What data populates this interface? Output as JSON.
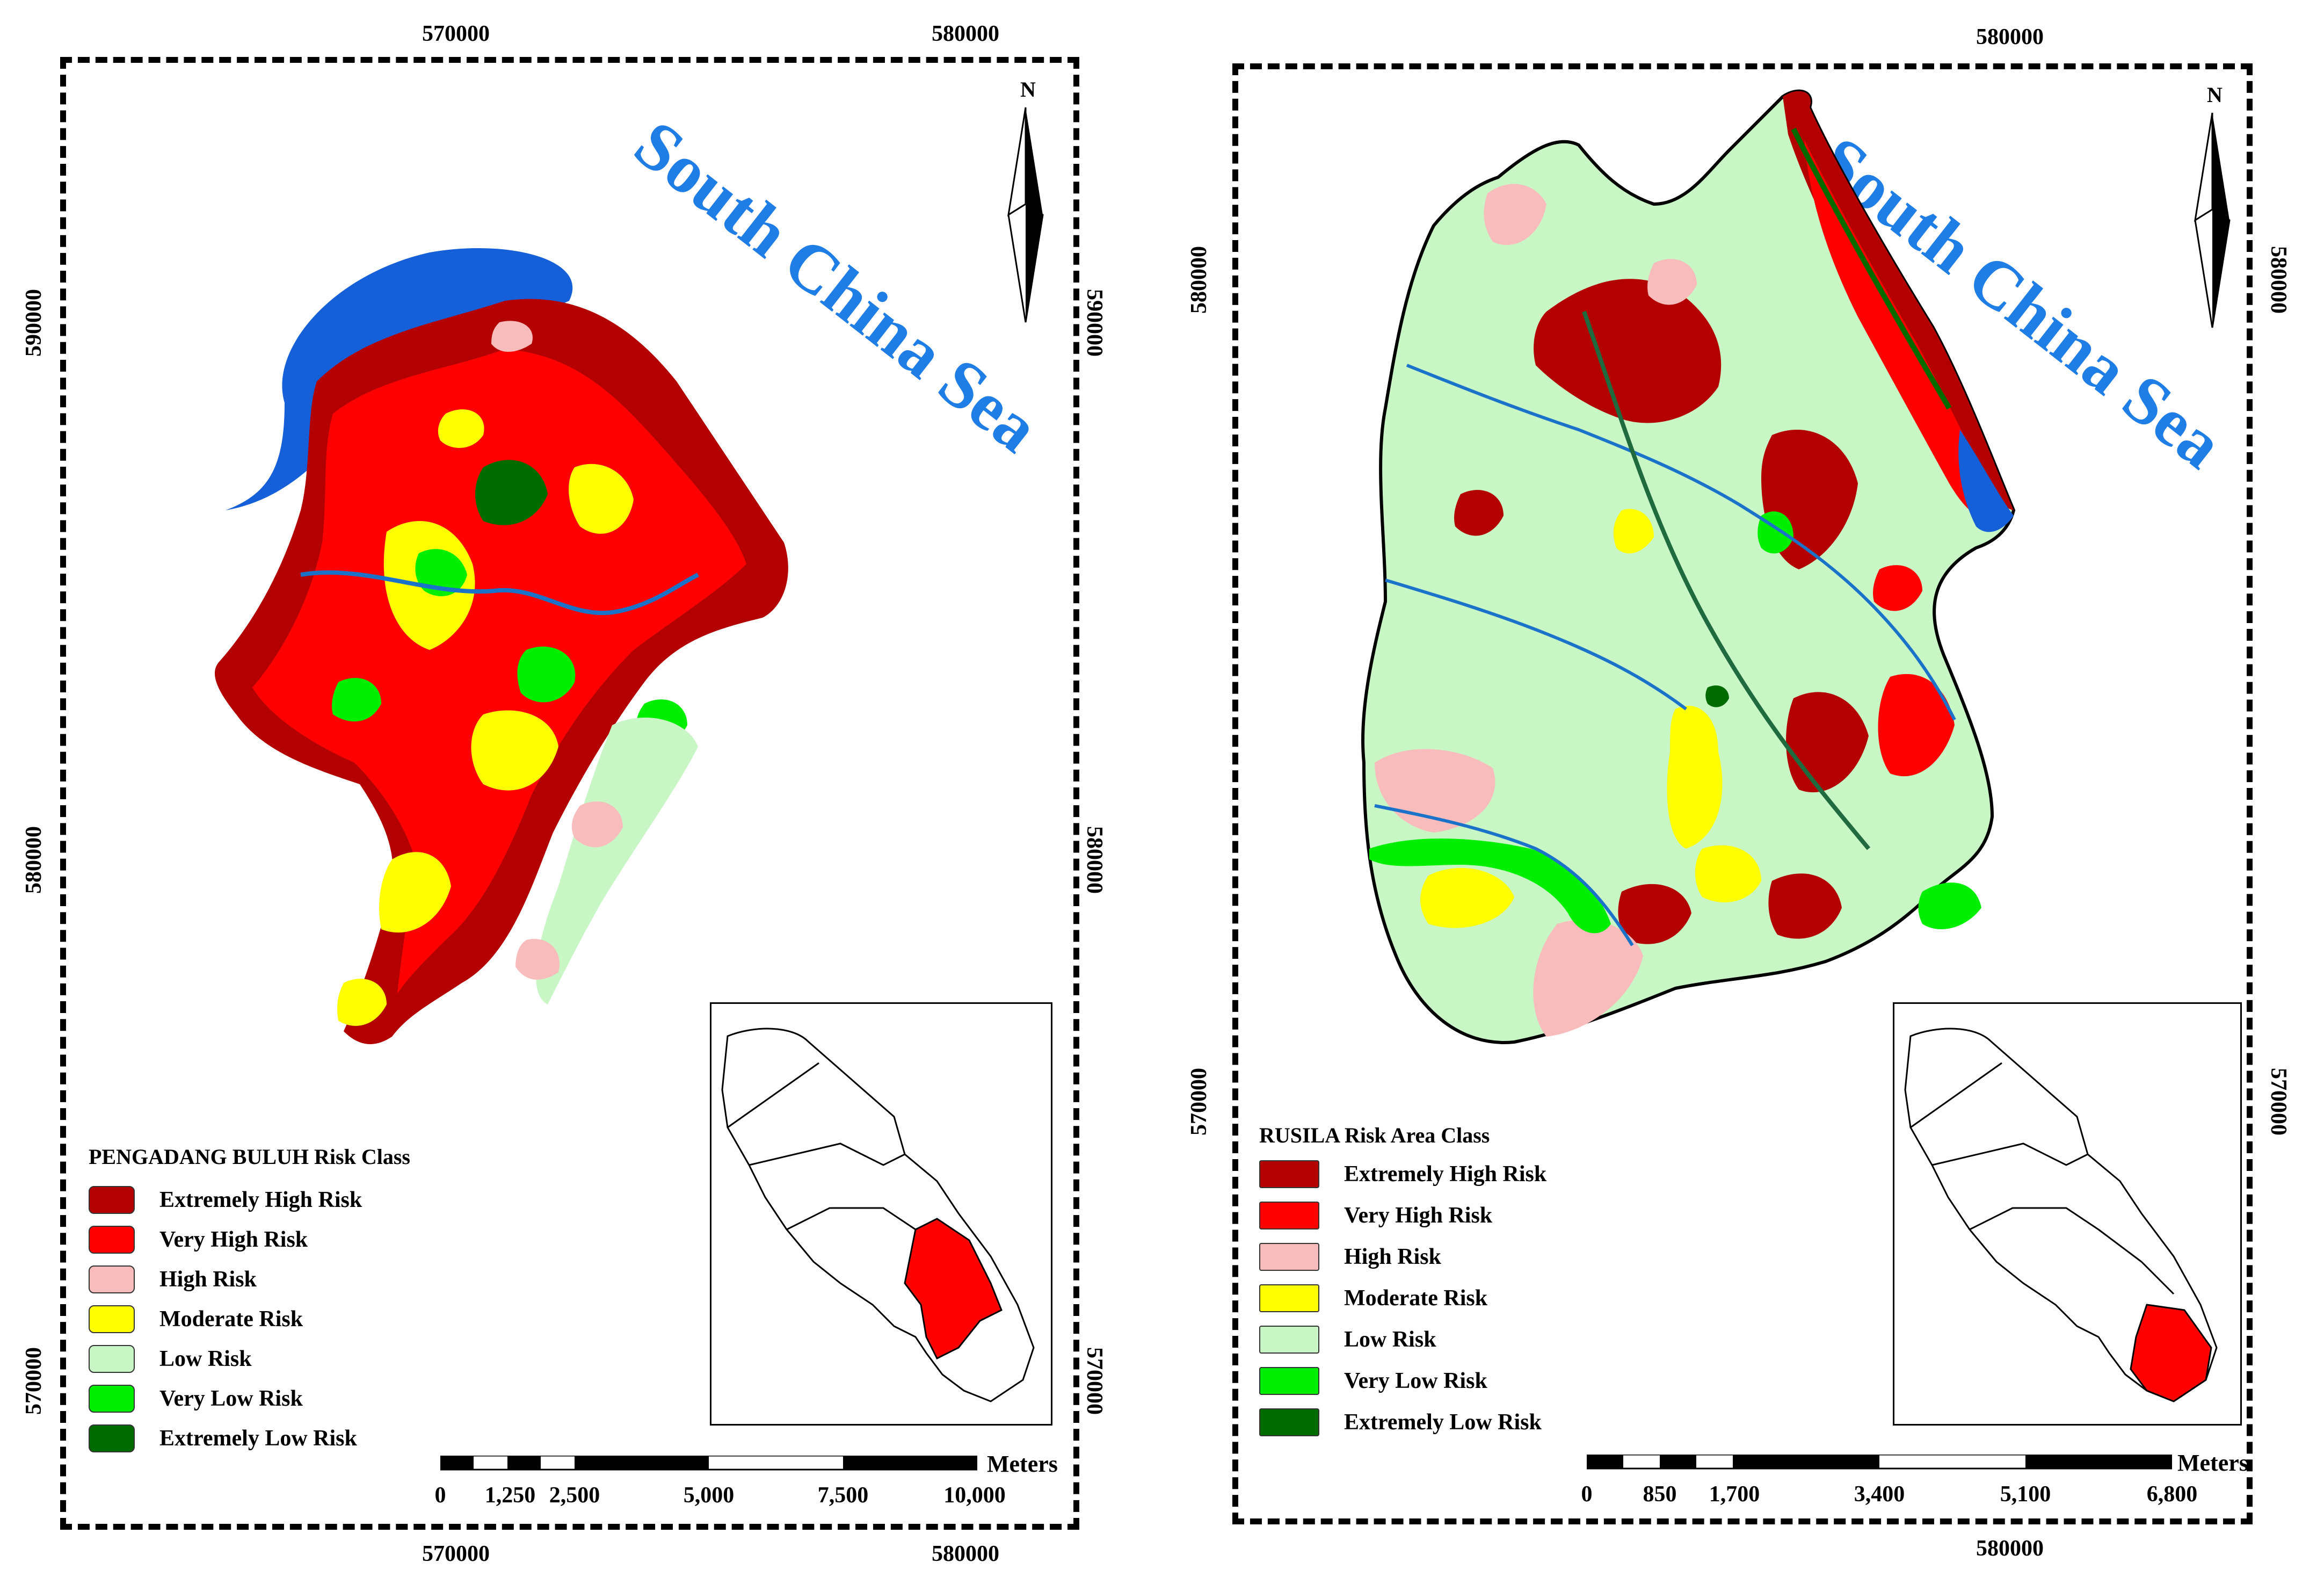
{
  "colors": {
    "extremely_high": "#b30000",
    "very_high": "#ff0000",
    "high": "#f8bcbc",
    "moderate": "#ffff00",
    "low": "#c8f7c5",
    "very_low": "#00ee00",
    "extremely_low": "#006b00",
    "water": "#1560d8",
    "river": "#1a73c9",
    "sea_label": "#1f7de6",
    "inset_highlight": "#ff0000"
  },
  "left_map": {
    "sea_label": "South China Sea",
    "north_label": "N",
    "coords": {
      "top": [
        "570000",
        "580000"
      ],
      "bottom": [
        "570000",
        "580000"
      ],
      "left": [
        "590000",
        "580000",
        "570000"
      ],
      "right": [
        "590000",
        "580000",
        "570000"
      ]
    },
    "legend": {
      "title": "PENGADANG BULUH Risk Class",
      "items": [
        {
          "label": "Extremely High Risk",
          "color_key": "extremely_high"
        },
        {
          "label": "Very High Risk",
          "color_key": "very_high"
        },
        {
          "label": "High Risk",
          "color_key": "high"
        },
        {
          "label": "Moderate Risk",
          "color_key": "moderate"
        },
        {
          "label": "Low Risk",
          "color_key": "low"
        },
        {
          "label": "Very Low Risk",
          "color_key": "very_low"
        },
        {
          "label": "Extremely Low Risk",
          "color_key": "extremely_low"
        }
      ]
    },
    "scale": {
      "unit": "Meters",
      "labels": [
        "0",
        "1,250",
        "2,500",
        "5,000",
        "7,500",
        "10,000"
      ]
    }
  },
  "right_map": {
    "sea_label": "South China Sea",
    "north_label": "N",
    "coords": {
      "top": [
        "580000"
      ],
      "bottom": [
        "580000"
      ],
      "left": [
        "580000",
        "570000"
      ],
      "right": [
        "580000",
        "570000"
      ]
    },
    "legend": {
      "title": "RUSILA Risk Area Class",
      "items": [
        {
          "label": "Extremely High Risk",
          "color_key": "extremely_high"
        },
        {
          "label": "Very High Risk",
          "color_key": "very_high"
        },
        {
          "label": "High Risk",
          "color_key": "high"
        },
        {
          "label": "Moderate Risk",
          "color_key": "moderate"
        },
        {
          "label": "Low Risk",
          "color_key": "low"
        },
        {
          "label": "Very Low Risk",
          "color_key": "very_low"
        },
        {
          "label": "Extremely Low Risk",
          "color_key": "extremely_low"
        }
      ]
    },
    "scale": {
      "unit": "Meters",
      "labels": [
        "0",
        "850",
        "1,700",
        "3,400",
        "5,100",
        "6,800"
      ]
    }
  }
}
